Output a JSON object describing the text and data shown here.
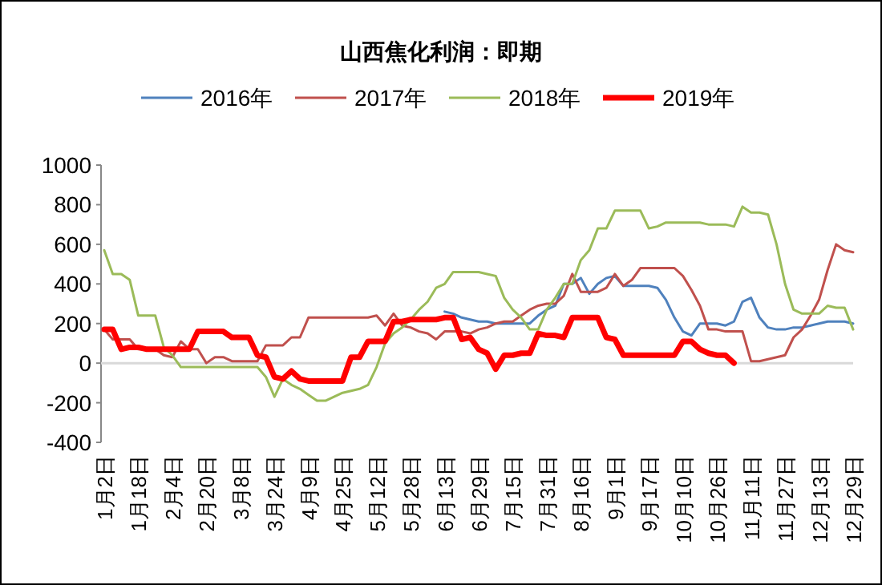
{
  "chart_data": {
    "type": "line",
    "title": "山西焦化利润：即期",
    "legend": "top",
    "categories": [
      "1月2日",
      null,
      null,
      null,
      "1月18日",
      null,
      null,
      null,
      "2月4日",
      null,
      null,
      null,
      "2月20日",
      null,
      null,
      null,
      "3月8日",
      null,
      null,
      null,
      "3月24日",
      null,
      null,
      null,
      "4月9日",
      null,
      null,
      null,
      "4月25日",
      null,
      null,
      null,
      "5月12日",
      null,
      null,
      null,
      "5月28日",
      null,
      null,
      null,
      "6月13日",
      null,
      null,
      null,
      "6月29日",
      null,
      null,
      null,
      "7月15日",
      null,
      null,
      null,
      "7月31日",
      null,
      null,
      null,
      "8月16日",
      null,
      null,
      null,
      "9月1日",
      null,
      null,
      null,
      "9月17日",
      null,
      null,
      null,
      "10月10日",
      null,
      null,
      null,
      "10月26日",
      null,
      null,
      null,
      "11月11日",
      null,
      null,
      null,
      "11月27日",
      null,
      null,
      null,
      "12月13日",
      null,
      null,
      null,
      "12月29日"
    ],
    "ylim": [
      -400,
      1000
    ],
    "yticks": [
      -400,
      -200,
      0,
      200,
      400,
      600,
      800,
      1000
    ],
    "series": [
      {
        "name": "2016年",
        "color": "#4f81bd",
        "values": [
          null,
          null,
          null,
          null,
          null,
          null,
          null,
          null,
          null,
          null,
          null,
          null,
          null,
          null,
          null,
          null,
          null,
          null,
          null,
          null,
          null,
          null,
          null,
          null,
          null,
          null,
          null,
          null,
          null,
          null,
          null,
          null,
          null,
          null,
          null,
          null,
          null,
          null,
          null,
          null,
          260,
          250,
          230,
          220,
          210,
          210,
          200,
          200,
          200,
          200,
          200,
          240,
          270,
          290,
          400,
          400,
          430,
          350,
          400,
          430,
          440,
          390,
          390,
          390,
          390,
          380,
          320,
          230,
          160,
          140,
          200,
          200,
          200,
          190,
          210,
          310,
          330,
          230,
          180,
          170,
          170,
          180,
          180,
          190,
          200,
          210,
          210,
          210,
          200
        ]
      },
      {
        "name": "2017年",
        "color": "#c0504d",
        "values": [
          170,
          120,
          120,
          120,
          70,
          70,
          70,
          40,
          30,
          110,
          70,
          70,
          0,
          30,
          30,
          10,
          10,
          10,
          10,
          90,
          90,
          90,
          130,
          130,
          230,
          230,
          230,
          230,
          230,
          230,
          230,
          230,
          240,
          190,
          250,
          190,
          180,
          160,
          150,
          120,
          160,
          160,
          160,
          150,
          170,
          180,
          200,
          210,
          210,
          240,
          270,
          290,
          300,
          300,
          340,
          450,
          360,
          360,
          360,
          380,
          450,
          390,
          420,
          480,
          480,
          480,
          480,
          480,
          440,
          370,
          290,
          170,
          170,
          160,
          160,
          160,
          10,
          10,
          20,
          30,
          40,
          130,
          170,
          240,
          320,
          470,
          600,
          570,
          560
        ]
      },
      {
        "name": "2018年",
        "color": "#9bbb59",
        "values": [
          570,
          450,
          450,
          420,
          240,
          240,
          240,
          80,
          40,
          -20,
          -20,
          -20,
          -20,
          -20,
          -20,
          -20,
          -20,
          -20,
          -20,
          -70,
          -170,
          -80,
          -110,
          -130,
          -160,
          -190,
          -190,
          -170,
          -150,
          -140,
          -130,
          -110,
          -20,
          100,
          150,
          180,
          220,
          270,
          310,
          380,
          400,
          460,
          460,
          460,
          460,
          450,
          440,
          330,
          270,
          230,
          170,
          170,
          270,
          330,
          400,
          400,
          520,
          570,
          680,
          680,
          770,
          770,
          770,
          770,
          680,
          690,
          710,
          710,
          710,
          710,
          710,
          700,
          700,
          700,
          690,
          790,
          760,
          760,
          750,
          600,
          400,
          270,
          250,
          250,
          250,
          290,
          280,
          280,
          170
        ]
      },
      {
        "name": "2019年",
        "color": "#ff0000",
        "values": [
          170,
          170,
          70,
          80,
          80,
          70,
          70,
          70,
          70,
          70,
          70,
          160,
          160,
          160,
          160,
          130,
          130,
          130,
          40,
          30,
          -70,
          -80,
          -40,
          -80,
          -90,
          -90,
          -90,
          -90,
          -90,
          30,
          30,
          110,
          110,
          110,
          210,
          210,
          220,
          220,
          220,
          220,
          230,
          230,
          120,
          130,
          70,
          50,
          -30,
          40,
          40,
          50,
          50,
          150,
          140,
          140,
          130,
          230,
          230,
          230,
          230,
          130,
          120,
          40,
          40,
          40,
          40,
          40,
          40,
          40,
          110,
          110,
          70,
          50,
          40,
          40,
          0,
          null,
          null,
          null,
          null,
          null,
          null,
          null,
          null,
          null,
          null,
          null,
          null,
          null,
          null
        ]
      }
    ]
  }
}
